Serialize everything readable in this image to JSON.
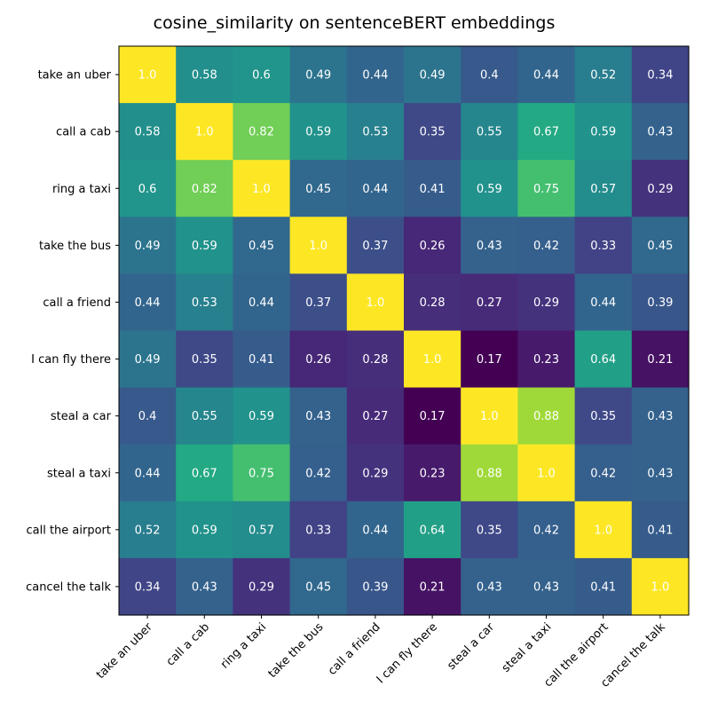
{
  "chart_data": {
    "type": "heatmap",
    "title": "cosine_similarity on sentenceBERT embeddings",
    "row_labels": [
      "take an uber",
      "call a cab",
      "ring a taxi",
      "take the bus",
      "call a friend",
      "I can fly there",
      "steal a car",
      "steal a taxi",
      "call the airport",
      "cancel the talk"
    ],
    "col_labels": [
      "take an uber",
      "call a cab",
      "ring a taxi",
      "take the bus",
      "call a friend",
      "I can fly there",
      "steal a car",
      "steal a taxi",
      "call the airport",
      "cancel the talk"
    ],
    "values": [
      [
        1.0,
        0.58,
        0.6,
        0.49,
        0.44,
        0.49,
        0.4,
        0.44,
        0.52,
        0.34
      ],
      [
        0.58,
        1.0,
        0.82,
        0.59,
        0.53,
        0.35,
        0.55,
        0.67,
        0.59,
        0.43
      ],
      [
        0.6,
        0.82,
        1.0,
        0.45,
        0.44,
        0.41,
        0.59,
        0.75,
        0.57,
        0.29
      ],
      [
        0.49,
        0.59,
        0.45,
        1.0,
        0.37,
        0.26,
        0.43,
        0.42,
        0.33,
        0.45
      ],
      [
        0.44,
        0.53,
        0.44,
        0.37,
        1.0,
        0.28,
        0.27,
        0.29,
        0.44,
        0.39
      ],
      [
        0.49,
        0.35,
        0.41,
        0.26,
        0.28,
        1.0,
        0.17,
        0.23,
        0.64,
        0.21
      ],
      [
        0.4,
        0.55,
        0.59,
        0.43,
        0.27,
        0.17,
        1.0,
        0.88,
        0.35,
        0.43
      ],
      [
        0.44,
        0.67,
        0.75,
        0.42,
        0.29,
        0.23,
        0.88,
        1.0,
        0.42,
        0.43
      ],
      [
        0.52,
        0.59,
        0.57,
        0.33,
        0.44,
        0.64,
        0.35,
        0.42,
        1.0,
        0.41
      ],
      [
        0.34,
        0.43,
        0.29,
        0.45,
        0.39,
        0.21,
        0.43,
        0.43,
        0.41,
        1.0
      ]
    ],
    "value_labels": [
      [
        "1.0",
        "0.58",
        "0.6",
        "0.49",
        "0.44",
        "0.49",
        "0.4",
        "0.44",
        "0.52",
        "0.34"
      ],
      [
        "0.58",
        "1.0",
        "0.82",
        "0.59",
        "0.53",
        "0.35",
        "0.55",
        "0.67",
        "0.59",
        "0.43"
      ],
      [
        "0.6",
        "0.82",
        "1.0",
        "0.45",
        "0.44",
        "0.41",
        "0.59",
        "0.75",
        "0.57",
        "0.29"
      ],
      [
        "0.49",
        "0.59",
        "0.45",
        "1.0",
        "0.37",
        "0.26",
        "0.43",
        "0.42",
        "0.33",
        "0.45"
      ],
      [
        "0.44",
        "0.53",
        "0.44",
        "0.37",
        "1.0",
        "0.28",
        "0.27",
        "0.29",
        "0.44",
        "0.39"
      ],
      [
        "0.49",
        "0.35",
        "0.41",
        "0.26",
        "0.28",
        "1.0",
        "0.17",
        "0.23",
        "0.64",
        "0.21"
      ],
      [
        "0.4",
        "0.55",
        "0.59",
        "0.43",
        "0.27",
        "0.17",
        "1.0",
        "0.88",
        "0.35",
        "0.43"
      ],
      [
        "0.44",
        "0.67",
        "0.75",
        "0.42",
        "0.29",
        "0.23",
        "0.88",
        "1.0",
        "0.42",
        "0.43"
      ],
      [
        "0.52",
        "0.59",
        "0.57",
        "0.33",
        "0.44",
        "0.64",
        "0.35",
        "0.42",
        "1.0",
        "0.41"
      ],
      [
        "0.34",
        "0.43",
        "0.29",
        "0.45",
        "0.39",
        "0.21",
        "0.43",
        "0.43",
        "0.41",
        "1.0"
      ]
    ],
    "value_range": [
      0.17,
      1.0
    ],
    "colormap": "viridis",
    "value_label_color": "#ffffff",
    "grid": false,
    "legend": "none",
    "xtick_rotation_deg": 45
  }
}
